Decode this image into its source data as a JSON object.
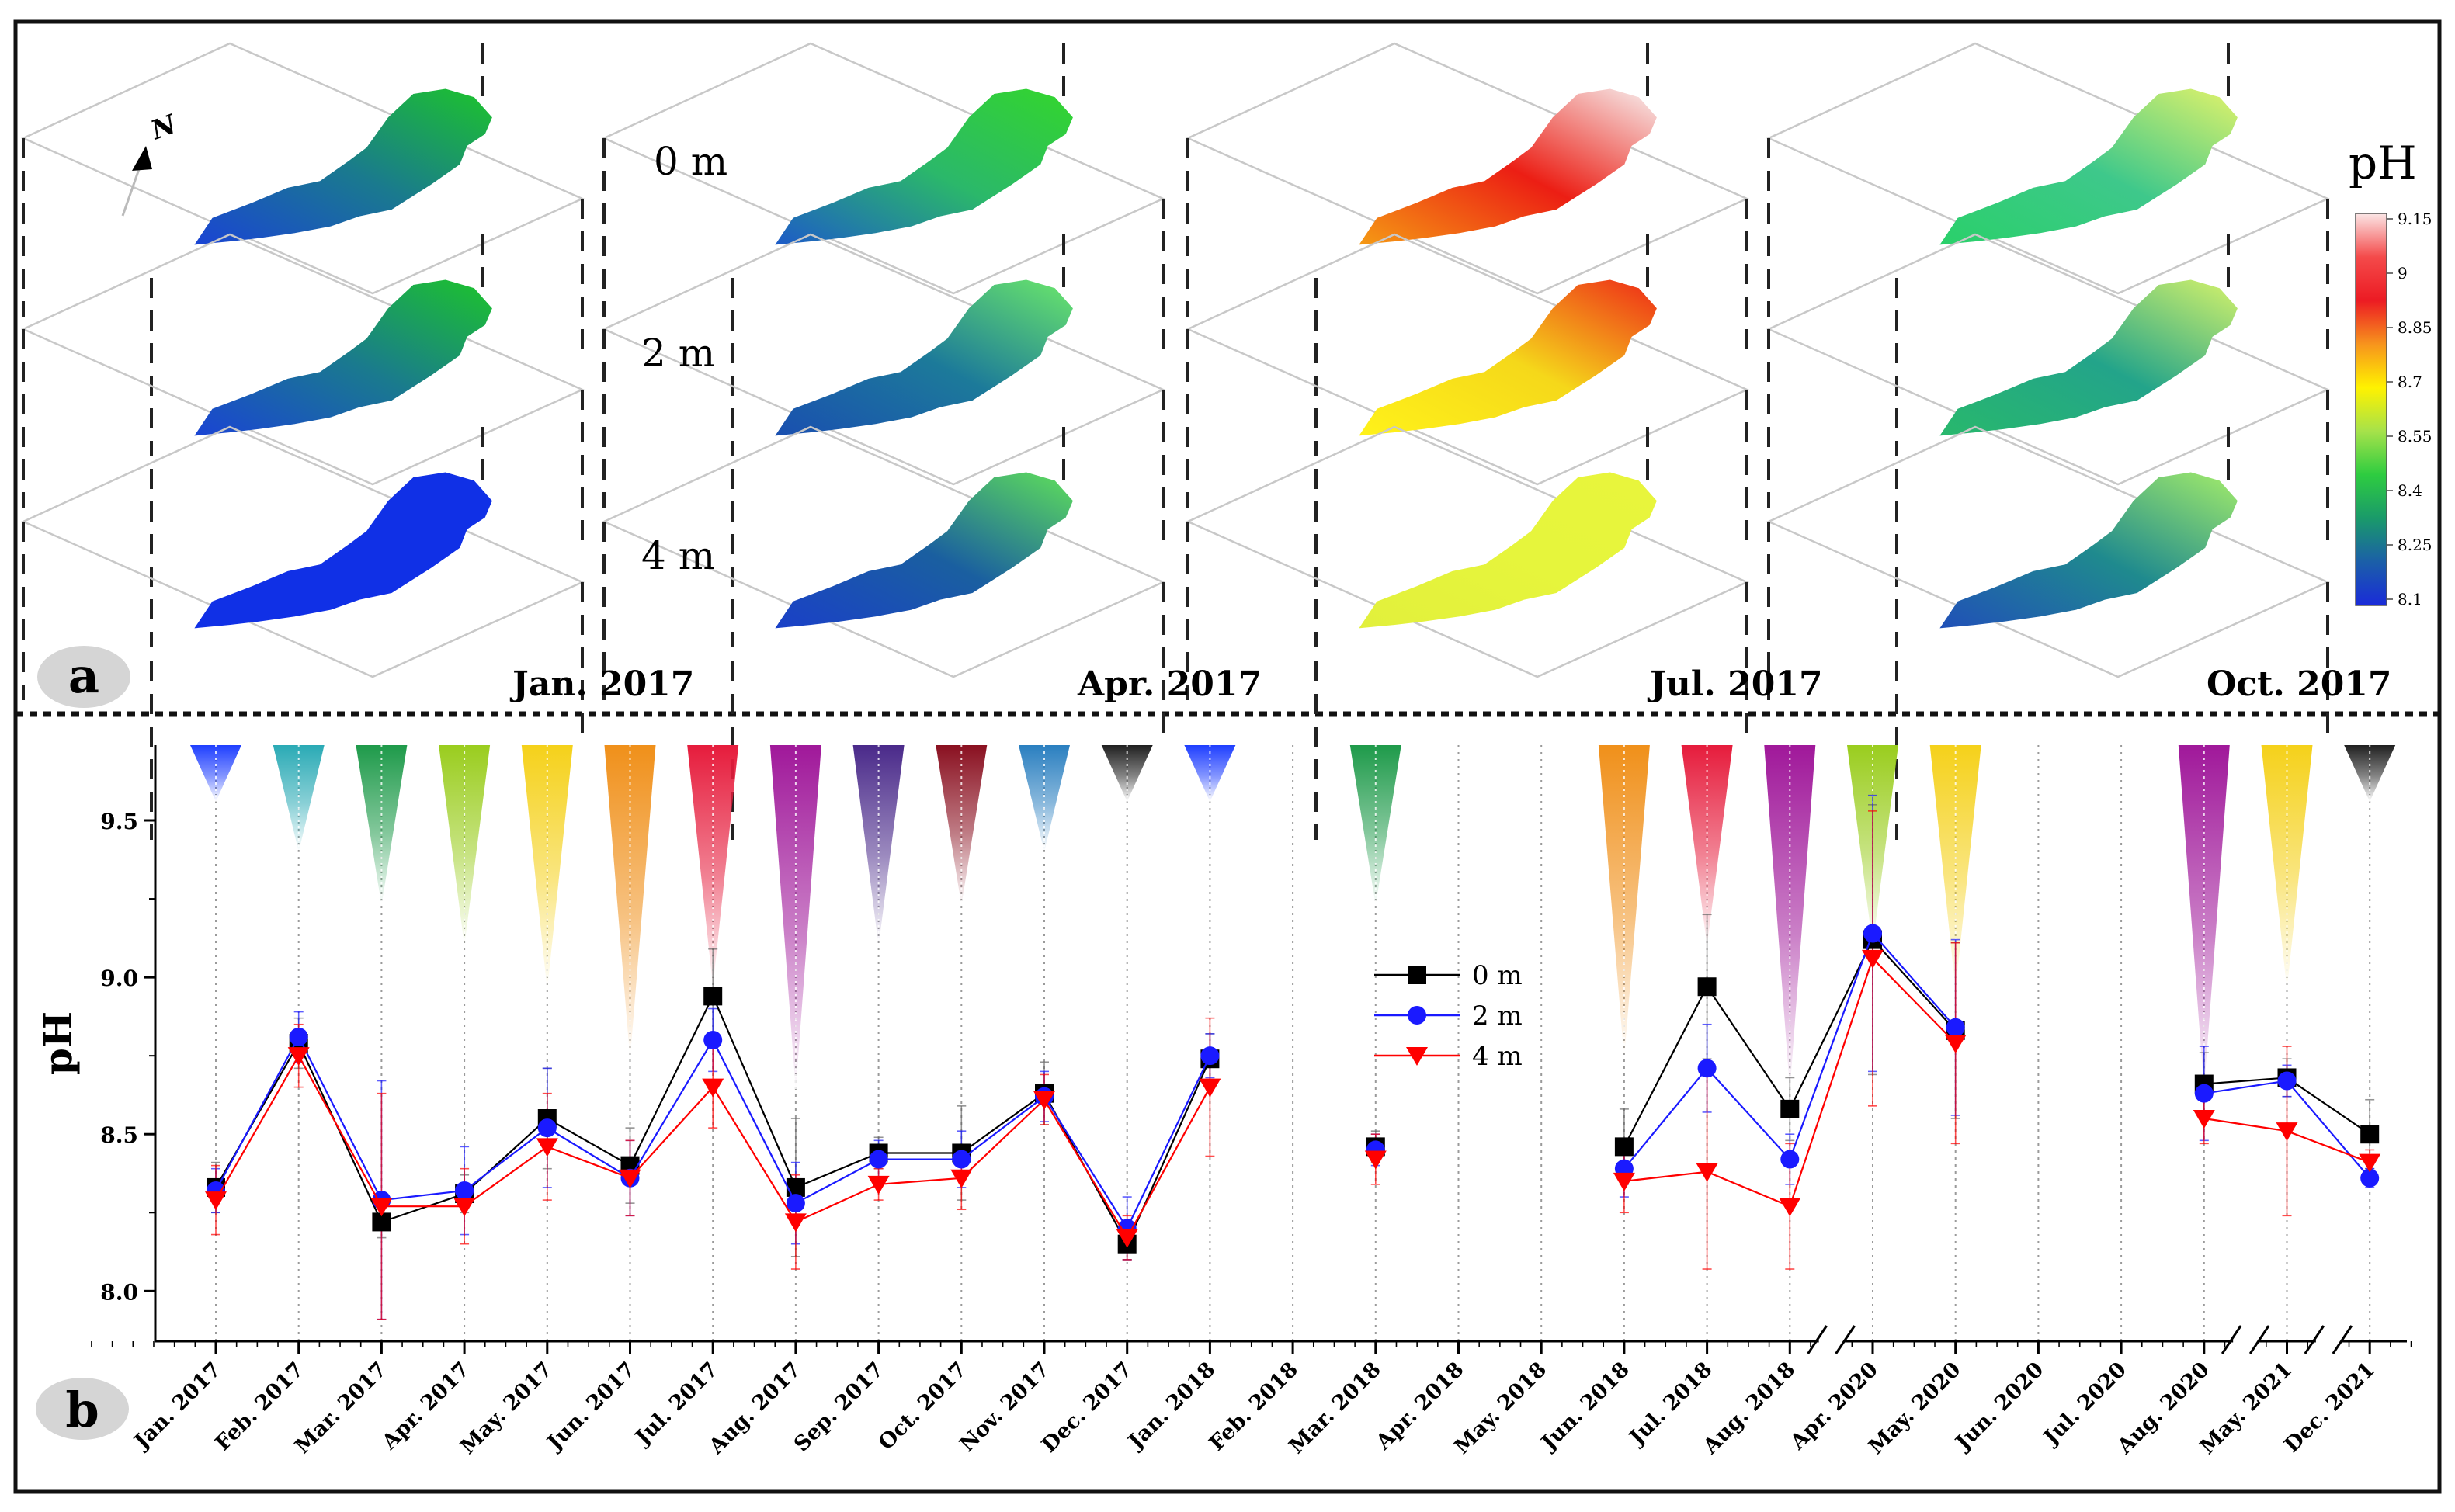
{
  "panel_a": {
    "label": "a",
    "north_label": "N",
    "depth_labels": [
      "0 m",
      "2 m",
      "4 m"
    ],
    "months": [
      {
        "label": "Jan. 2017",
        "layers": [
          [
            "#1cc42b",
            "#1a7a8e",
            "#1a44d4"
          ],
          [
            "#1cc42b",
            "#1a7a8e",
            "#1a44d4"
          ],
          [
            "#1030e6",
            "#1030e6",
            "#1030e6"
          ]
        ]
      },
      {
        "label": "Apr. 2017",
        "layers": [
          [
            "#33d62c",
            "#2bb86a",
            "#1d5bc8"
          ],
          [
            "#6be86a",
            "#1c7a9a",
            "#1a4fb0"
          ],
          [
            "#5fe05a",
            "#1a5fa0",
            "#1a40c8"
          ]
        ]
      },
      {
        "label": "Jul. 2017",
        "layers": [
          [
            "#f7f0f0",
            "#ec1e14",
            "#f59a14"
          ],
          [
            "#ee2a18",
            "#f5d81a",
            "#fff21a"
          ],
          [
            "#e8f53c",
            "#e6f53c",
            "#e2f03c"
          ]
        ]
      },
      {
        "label": "Oct. 2017",
        "layers": [
          [
            "#e2f36a",
            "#3ec88b",
            "#2ad06a"
          ],
          [
            "#d6f36a",
            "#23a48a",
            "#28b86c"
          ],
          [
            "#a4ed6a",
            "#1f8a8e",
            "#2050b8"
          ]
        ]
      }
    ],
    "colorbar": {
      "title": "pH",
      "ticks": [
        "9.15",
        "9",
        "8.85",
        "8.7",
        "8.55",
        "8.4",
        "8.25",
        "8.1"
      ],
      "colors": [
        "#fbe6e6",
        "#f44a4a",
        "#ec1b23",
        "#f7941d",
        "#fff200",
        "#a6e24a",
        "#2ecc40",
        "#1a9a6a",
        "#1b5fa8",
        "#1a2bd9"
      ]
    }
  },
  "chart_data": {
    "type": "line",
    "panel_label": "b",
    "ylabel": "pH",
    "ylim": [
      7.84,
      9.74
    ],
    "yticks": [
      "8.0",
      "8.5",
      "9.0",
      "9.5"
    ],
    "categories": [
      "Jan. 2017",
      "Feb. 2017",
      "Mar. 2017",
      "Apr. 2017",
      "May. 2017",
      "Jun. 2017",
      "Jul. 2017",
      "Aug. 2017",
      "Sep. 2017",
      "Oct. 2017",
      "Nov. 2017",
      "Dec. 2017",
      "Jan. 2018",
      "Feb. 2018",
      "Mar. 2018",
      "Apr. 2018",
      "May. 2018",
      "Jun. 2018",
      "Jul. 2018",
      "Aug. 2018",
      "Apr. 2020",
      "May. 2020",
      "Jun. 2020",
      "Jul. 2020",
      "Aug. 2020",
      "May. 2021",
      "Dec. 2021"
    ],
    "category_offsets": [
      0,
      1,
      2,
      3,
      4,
      5,
      6,
      7,
      8,
      9,
      10,
      11,
      12,
      13,
      14,
      15,
      16,
      17,
      18,
      19,
      20,
      21,
      22,
      23,
      24,
      25,
      26
    ],
    "axis_breaks_after": [
      "Aug. 2018",
      "Aug. 2020",
      "May. 2021"
    ],
    "series": [
      {
        "name": "0 m",
        "color": "#000000",
        "marker": "square",
        "values": [
          8.33,
          8.79,
          8.22,
          8.31,
          8.55,
          8.4,
          8.94,
          8.33,
          8.44,
          8.44,
          8.63,
          8.15,
          8.74,
          null,
          8.46,
          null,
          null,
          8.46,
          8.97,
          8.58,
          9.12,
          8.83,
          null,
          null,
          8.66,
          8.68,
          8.5
        ],
        "err": [
          0.08,
          0.08,
          0.05,
          0.06,
          0.16,
          0.12,
          0.15,
          0.22,
          0.05,
          0.15,
          0.1,
          0.05,
          0.08,
          null,
          0.05,
          null,
          null,
          0.12,
          0.23,
          0.1,
          0.43,
          0.28,
          null,
          null,
          0.1,
          0.06,
          0.11
        ]
      },
      {
        "name": "2 m",
        "color": "#1a1aff",
        "marker": "circle",
        "values": [
          8.32,
          8.81,
          8.29,
          8.32,
          8.52,
          8.36,
          8.8,
          8.28,
          8.42,
          8.42,
          8.62,
          8.2,
          8.75,
          null,
          8.45,
          null,
          null,
          8.39,
          8.71,
          8.42,
          9.14,
          8.84,
          null,
          null,
          8.63,
          8.67,
          8.36
        ],
        "err": [
          0.07,
          0.08,
          0.38,
          0.14,
          0.19,
          0.12,
          0.1,
          0.13,
          0.06,
          0.09,
          0.08,
          0.1,
          0.07,
          null,
          0.05,
          null,
          null,
          0.09,
          0.14,
          0.08,
          0.44,
          0.28,
          null,
          null,
          0.15,
          0.05,
          0.03
        ]
      },
      {
        "name": "4 m",
        "color": "#ff0000",
        "marker": "triangle-down",
        "values": [
          8.29,
          8.75,
          8.27,
          8.27,
          8.46,
          8.36,
          8.65,
          8.22,
          8.34,
          8.36,
          8.61,
          8.17,
          8.65,
          null,
          8.42,
          null,
          null,
          8.35,
          8.38,
          8.27,
          9.06,
          8.79,
          null,
          null,
          8.55,
          8.51,
          8.41
        ],
        "err": [
          0.11,
          0.1,
          0.36,
          0.12,
          0.17,
          0.12,
          0.13,
          0.15,
          0.05,
          0.1,
          0.08,
          0.07,
          0.22,
          null,
          0.08,
          null,
          null,
          0.1,
          0.31,
          0.2,
          0.47,
          0.32,
          null,
          null,
          0.08,
          0.27,
          0.04
        ]
      }
    ],
    "cone_indicators": [
      {
        "category": "Jan. 2017",
        "top": 9.74,
        "bottom": 9.56,
        "color": "#1f3fff"
      },
      {
        "category": "Feb. 2017",
        "top": 9.74,
        "bottom": 9.4,
        "color": "#2aaab5"
      },
      {
        "category": "Mar. 2017",
        "top": 9.74,
        "bottom": 9.23,
        "color": "#1e9a4a"
      },
      {
        "category": "Apr. 2017",
        "top": 9.74,
        "bottom": 9.1,
        "color": "#9acd1e"
      },
      {
        "category": "May. 2017",
        "top": 9.74,
        "bottom": 8.96,
        "color": "#f5d11a"
      },
      {
        "category": "Jun. 2017",
        "top": 9.74,
        "bottom": 8.74,
        "color": "#f0901a"
      },
      {
        "category": "Jul. 2017",
        "top": 9.74,
        "bottom": 8.97,
        "color": "#e61c3c"
      },
      {
        "category": "Aug. 2017",
        "top": 9.74,
        "bottom": 8.64,
        "color": "#a0189a"
      },
      {
        "category": "Sep. 2017",
        "top": 9.74,
        "bottom": 9.1,
        "color": "#4a2a8a"
      },
      {
        "category": "Oct. 2017",
        "top": 9.74,
        "bottom": 9.23,
        "color": "#8a1020"
      },
      {
        "category": "Nov. 2017",
        "top": 9.74,
        "bottom": 9.4,
        "color": "#2a7fc0"
      },
      {
        "category": "Dec. 2017",
        "top": 9.74,
        "bottom": 9.56,
        "color": "#202020"
      },
      {
        "category": "Jan. 2018",
        "top": 9.74,
        "bottom": 9.56,
        "color": "#1f3fff"
      },
      {
        "category": "Mar. 2018",
        "top": 9.74,
        "bottom": 9.23,
        "color": "#1e9a4a"
      },
      {
        "category": "Jun. 2018",
        "top": 9.74,
        "bottom": 8.74,
        "color": "#f0901a"
      },
      {
        "category": "Jul. 2018",
        "top": 9.74,
        "bottom": 9.1,
        "color": "#e61c3c"
      },
      {
        "category": "Aug. 2018",
        "top": 9.74,
        "bottom": 8.64,
        "color": "#a0189a"
      },
      {
        "category": "Apr. 2020",
        "top": 9.74,
        "bottom": 9.1,
        "color": "#9acd1e"
      },
      {
        "category": "May. 2020",
        "top": 9.74,
        "bottom": 8.96,
        "color": "#f5d11a"
      },
      {
        "category": "Aug. 2020",
        "top": 9.74,
        "bottom": 8.64,
        "color": "#a0189a"
      },
      {
        "category": "May. 2021",
        "top": 9.74,
        "bottom": 8.96,
        "color": "#f5d11a"
      },
      {
        "category": "Dec. 2021",
        "top": 9.74,
        "bottom": 9.56,
        "color": "#202020"
      }
    ],
    "legend_position": "center"
  }
}
